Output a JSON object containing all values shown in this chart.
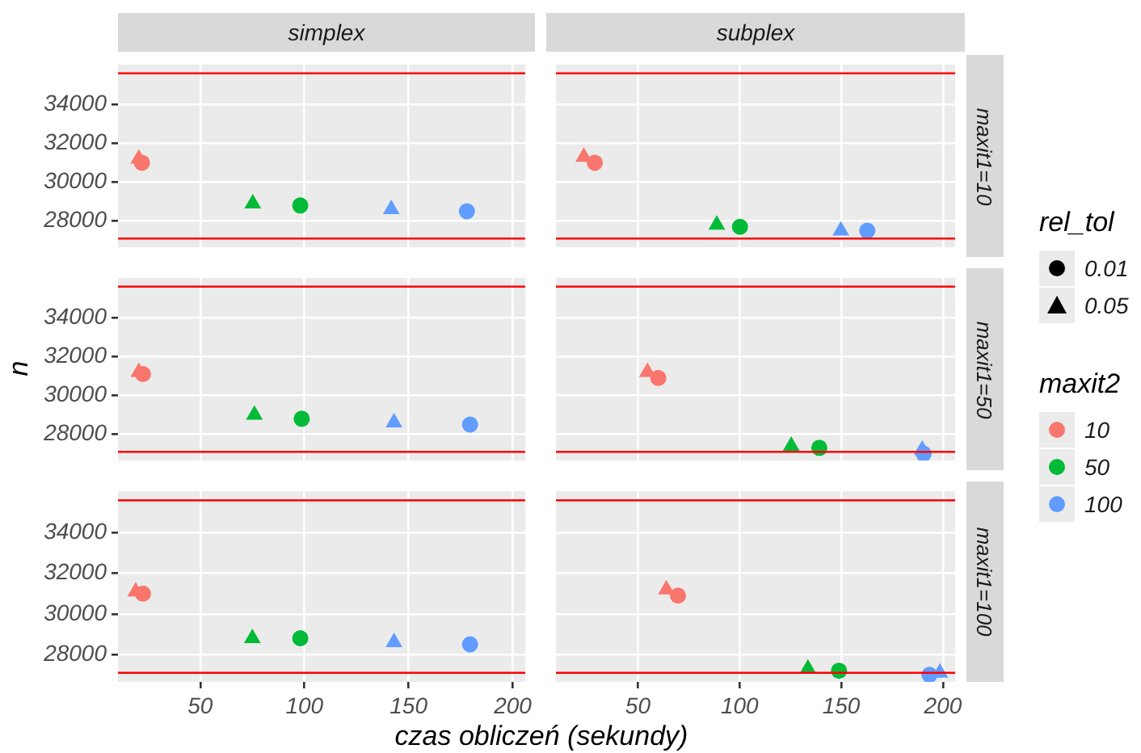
{
  "chart_data": [
    {
      "type": "scatter",
      "title": "simplex",
      "ylabel": "n",
      "xlim": [
        10.5,
        206
      ],
      "ylim": [
        26650,
        36050
      ],
      "xticks": [
        50,
        100,
        150,
        200
      ],
      "yticks": [
        28000,
        30000,
        32000,
        34000
      ],
      "grid": true,
      "tick_labels": "y",
      "ref_lines": [
        {
          "axis": "y",
          "value": 35600,
          "color": "#ff0000"
        },
        {
          "axis": "y",
          "value": 27100,
          "color": "#ff0000"
        }
      ],
      "series": [
        {
          "color": "#f8766d",
          "marker": "triangle",
          "x": [
            20.5
          ],
          "values": [
            31200
          ]
        },
        {
          "color": "#f8766d",
          "marker": "circle",
          "x": [
            22
          ],
          "values": [
            31000
          ]
        },
        {
          "color": "#00ba38",
          "marker": "triangle",
          "x": [
            75.2
          ],
          "values": [
            28900
          ]
        },
        {
          "color": "#00ba38",
          "marker": "circle",
          "x": [
            98
          ],
          "values": [
            28800
          ]
        },
        {
          "color": "#619cff",
          "marker": "triangle",
          "x": [
            141.7
          ],
          "values": [
            28600
          ]
        },
        {
          "color": "#619cff",
          "marker": "circle",
          "x": [
            178
          ],
          "values": [
            28500
          ]
        }
      ]
    },
    {
      "type": "scatter",
      "title": "subplex",
      "annotations": [
        "maxit1=10"
      ],
      "xlim": [
        9.7,
        206
      ],
      "ylim": [
        26650,
        36050
      ],
      "xticks": [
        50,
        100,
        150,
        200
      ],
      "yticks": [
        28000,
        30000,
        32000,
        34000
      ],
      "grid": true,
      "tick_labels": false,
      "ref_lines": [
        {
          "axis": "y",
          "value": 35600,
          "color": "#ff0000"
        },
        {
          "axis": "y",
          "value": 27100,
          "color": "#ff0000"
        }
      ],
      "series": [
        {
          "color": "#f8766d",
          "marker": "triangle",
          "x": [
            23.4
          ],
          "values": [
            31300
          ]
        },
        {
          "color": "#f8766d",
          "marker": "circle",
          "x": [
            28.8
          ],
          "values": [
            31000
          ]
        },
        {
          "color": "#00ba38",
          "marker": "triangle",
          "x": [
            88.8
          ],
          "values": [
            27800
          ]
        },
        {
          "color": "#00ba38",
          "marker": "circle",
          "x": [
            100.2
          ],
          "values": [
            27700
          ]
        },
        {
          "color": "#619cff",
          "marker": "triangle",
          "x": [
            149.8
          ],
          "values": [
            27500
          ]
        },
        {
          "color": "#619cff",
          "marker": "circle",
          "x": [
            162.8
          ],
          "values": [
            27500
          ]
        }
      ]
    },
    {
      "type": "scatter",
      "xlim": [
        10.5,
        206
      ],
      "ylim": [
        26650,
        36050
      ],
      "xticks": [
        50,
        100,
        150,
        200
      ],
      "yticks": [
        28000,
        30000,
        32000,
        34000
      ],
      "grid": true,
      "tick_labels": "y",
      "ref_lines": [
        {
          "axis": "y",
          "value": 35600,
          "color": "#ff0000"
        },
        {
          "axis": "y",
          "value": 27100,
          "color": "#ff0000"
        }
      ],
      "series": [
        {
          "color": "#f8766d",
          "marker": "triangle",
          "x": [
            20.5
          ],
          "values": [
            31200
          ]
        },
        {
          "color": "#f8766d",
          "marker": "circle",
          "x": [
            22.5
          ],
          "values": [
            31100
          ]
        },
        {
          "color": "#00ba38",
          "marker": "triangle",
          "x": [
            76
          ],
          "values": [
            29000
          ]
        },
        {
          "color": "#00ba38",
          "marker": "circle",
          "x": [
            98.7
          ],
          "values": [
            28800
          ]
        },
        {
          "color": "#619cff",
          "marker": "triangle",
          "x": [
            143
          ],
          "values": [
            28600
          ]
        },
        {
          "color": "#619cff",
          "marker": "circle",
          "x": [
            179.5
          ],
          "values": [
            28500
          ]
        }
      ]
    },
    {
      "type": "scatter",
      "annotations": [
        "maxit1=50"
      ],
      "xlim": [
        9.7,
        206
      ],
      "ylim": [
        26650,
        36050
      ],
      "xticks": [
        50,
        100,
        150,
        200
      ],
      "yticks": [
        28000,
        30000,
        32000,
        34000
      ],
      "grid": true,
      "tick_labels": false,
      "ref_lines": [
        {
          "axis": "y",
          "value": 35600,
          "color": "#ff0000"
        },
        {
          "axis": "y",
          "value": 27100,
          "color": "#ff0000"
        }
      ],
      "series": [
        {
          "color": "#f8766d",
          "marker": "triangle",
          "x": [
            54.7
          ],
          "values": [
            31200
          ]
        },
        {
          "color": "#f8766d",
          "marker": "circle",
          "x": [
            60
          ],
          "values": [
            30900
          ]
        },
        {
          "color": "#00ba38",
          "marker": "triangle",
          "x": [
            125.4
          ],
          "values": [
            27400
          ]
        },
        {
          "color": "#00ba38",
          "marker": "circle",
          "x": [
            139.2
          ],
          "values": [
            27300
          ]
        },
        {
          "color": "#619cff",
          "marker": "triangle",
          "x": [
            189.8
          ],
          "values": [
            27200
          ]
        },
        {
          "color": "#619cff",
          "marker": "circle",
          "x": [
            190.5
          ],
          "values": [
            27000
          ]
        }
      ]
    },
    {
      "type": "scatter",
      "xlabel": "czas obliczeń (sekundy)",
      "xlim": [
        10.5,
        206
      ],
      "ylim": [
        26650,
        36050
      ],
      "xticks": [
        50,
        100,
        150,
        200
      ],
      "yticks": [
        28000,
        30000,
        32000,
        34000
      ],
      "grid": true,
      "ref_lines": [
        {
          "axis": "y",
          "value": 35600,
          "color": "#ff0000"
        },
        {
          "axis": "y",
          "value": 27100,
          "color": "#ff0000"
        }
      ],
      "series": [
        {
          "color": "#f8766d",
          "marker": "triangle",
          "x": [
            19
          ],
          "values": [
            31100
          ]
        },
        {
          "color": "#f8766d",
          "marker": "circle",
          "x": [
            22.5
          ],
          "values": [
            31000
          ]
        },
        {
          "color": "#00ba38",
          "marker": "triangle",
          "x": [
            75
          ],
          "values": [
            28800
          ]
        },
        {
          "color": "#00ba38",
          "marker": "circle",
          "x": [
            98
          ],
          "values": [
            28800
          ]
        },
        {
          "color": "#619cff",
          "marker": "triangle",
          "x": [
            143
          ],
          "values": [
            28600
          ]
        },
        {
          "color": "#619cff",
          "marker": "circle",
          "x": [
            179.5
          ],
          "values": [
            28500
          ]
        }
      ]
    },
    {
      "type": "scatter",
      "annotations": [
        "maxit1=100"
      ],
      "xlim": [
        9.7,
        206
      ],
      "ylim": [
        26650,
        36050
      ],
      "xticks": [
        50,
        100,
        150,
        200
      ],
      "yticks": [
        28000,
        30000,
        32000,
        34000
      ],
      "grid": true,
      "tick_labels": "x",
      "ref_lines": [
        {
          "axis": "y",
          "value": 35600,
          "color": "#ff0000"
        },
        {
          "axis": "y",
          "value": 27100,
          "color": "#ff0000"
        }
      ],
      "series": [
        {
          "color": "#f8766d",
          "marker": "triangle",
          "x": [
            64
          ],
          "values": [
            31200
          ]
        },
        {
          "color": "#f8766d",
          "marker": "circle",
          "x": [
            69.7
          ],
          "values": [
            30900
          ]
        },
        {
          "color": "#00ba38",
          "marker": "triangle",
          "x": [
            133.6
          ],
          "values": [
            27300
          ]
        },
        {
          "color": "#00ba38",
          "marker": "circle",
          "x": [
            148.9
          ],
          "values": [
            27200
          ]
        },
        {
          "color": "#619cff",
          "marker": "triangle",
          "x": [
            198.5
          ],
          "values": [
            27100
          ]
        },
        {
          "color": "#619cff",
          "marker": "circle",
          "x": [
            193.4
          ],
          "values": [
            27000
          ]
        }
      ]
    },
    {
      "type": "other",
      "legend_title": "rel_tol",
      "series": [
        {
          "name": "0.01",
          "marker": "circle",
          "color": "#000000"
        },
        {
          "name": "0.05",
          "marker": "triangle",
          "color": "#000000"
        }
      ]
    },
    {
      "type": "other",
      "legend_title": "maxit2",
      "series": [
        {
          "name": "10",
          "marker": "circle",
          "color": "#f8766d"
        },
        {
          "name": "50",
          "marker": "circle",
          "color": "#00ba38"
        },
        {
          "name": "100",
          "marker": "circle",
          "color": "#619cff"
        }
      ]
    }
  ]
}
